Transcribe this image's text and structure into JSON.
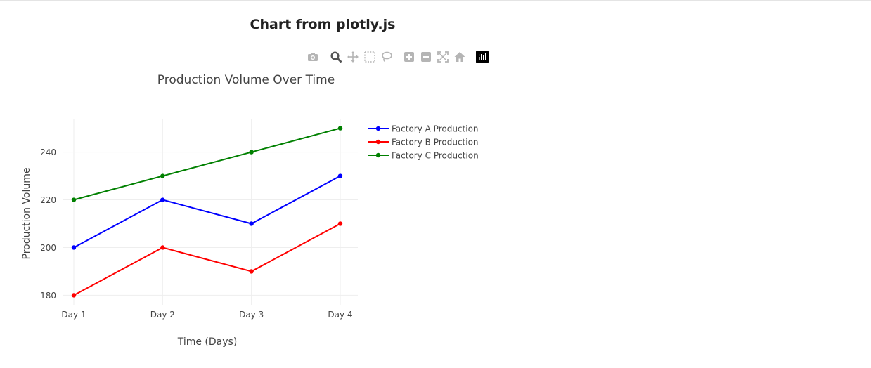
{
  "page": {
    "title": "Chart from plotly.js"
  },
  "modebar": {
    "buttons": [
      "camera-icon",
      "zoom-icon",
      "pan-icon",
      "box-select-icon",
      "lasso-select-icon",
      "zoom-in-icon",
      "zoom-out-icon",
      "autoscale-icon",
      "reset-axes-icon",
      "plotly-logo-icon"
    ]
  },
  "chart_data": {
    "type": "line",
    "title": "Production Volume Over Time",
    "xlabel": "Time (Days)",
    "ylabel": "Production Volume",
    "categories": [
      "Day 1",
      "Day 2",
      "Day 3",
      "Day 4"
    ],
    "ylim": [
      176,
      254
    ],
    "yticks": [
      180,
      200,
      220,
      240
    ],
    "grid": true,
    "legend_position": "right",
    "series": [
      {
        "name": "Factory A Production",
        "color": "#0000ff",
        "values": [
          200,
          220,
          210,
          230
        ]
      },
      {
        "name": "Factory B Production",
        "color": "#ff0000",
        "values": [
          180,
          200,
          190,
          210
        ]
      },
      {
        "name": "Factory C Production",
        "color": "#008000",
        "values": [
          220,
          230,
          240,
          250
        ]
      }
    ]
  }
}
